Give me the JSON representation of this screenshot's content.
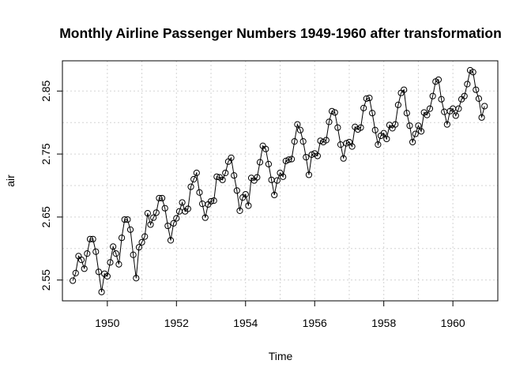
{
  "chart_data": {
    "type": "line",
    "title": "Monthly Airline Passenger Numbers 1949-1960 after transformation",
    "xlabel": "Time",
    "ylabel": "air",
    "xlim": [
      1948.7,
      1961.3
    ],
    "ylim": [
      2.517,
      2.898
    ],
    "x_ticks": [
      1950,
      1952,
      1954,
      1956,
      1958,
      1960
    ],
    "x_tick_labels": [
      "1950",
      "1952",
      "1954",
      "1956",
      "1958",
      "1960"
    ],
    "y_ticks": [
      2.55,
      2.65,
      2.75,
      2.85
    ],
    "y_tick_labels": [
      "2.55",
      "2.65",
      "2.75",
      "2.85"
    ],
    "grid_x": [
      1950,
      1951,
      1952,
      1953,
      1954,
      1955,
      1956,
      1957,
      1958,
      1959,
      1960
    ],
    "grid_y": [
      2.55,
      2.6,
      2.65,
      2.7,
      2.75,
      2.8,
      2.85
    ],
    "grid": "dotted",
    "markers": "open-circle",
    "line_color": "#000000",
    "grid_color": "#d3d3d3",
    "x_start": 1949,
    "x_step": 0.0833333,
    "series": [
      {
        "values": [
          2.549,
          2.561,
          2.588,
          2.582,
          2.568,
          2.592,
          2.615,
          2.615,
          2.595,
          2.563,
          2.531,
          2.56,
          2.556,
          2.578,
          2.603,
          2.592,
          2.575,
          2.617,
          2.646,
          2.646,
          2.63,
          2.59,
          2.553,
          2.602,
          2.61,
          2.619,
          2.656,
          2.638,
          2.649,
          2.657,
          2.68,
          2.68,
          2.664,
          2.636,
          2.613,
          2.64,
          2.648,
          2.659,
          2.673,
          2.659,
          2.663,
          2.698,
          2.71,
          2.72,
          2.689,
          2.671,
          2.649,
          2.67,
          2.675,
          2.676,
          2.714,
          2.713,
          2.709,
          2.72,
          2.738,
          2.744,
          2.716,
          2.692,
          2.66,
          2.681,
          2.686,
          2.668,
          2.712,
          2.708,
          2.713,
          2.737,
          2.763,
          2.758,
          2.734,
          2.709,
          2.685,
          2.708,
          2.72,
          2.714,
          2.739,
          2.741,
          2.742,
          2.77,
          2.797,
          2.788,
          2.77,
          2.745,
          2.717,
          2.749,
          2.751,
          2.747,
          2.771,
          2.769,
          2.772,
          2.801,
          2.818,
          2.816,
          2.792,
          2.765,
          2.743,
          2.767,
          2.769,
          2.762,
          2.793,
          2.789,
          2.792,
          2.823,
          2.838,
          2.839,
          2.815,
          2.788,
          2.765,
          2.779,
          2.783,
          2.774,
          2.796,
          2.791,
          2.797,
          2.828,
          2.847,
          2.852,
          2.815,
          2.795,
          2.769,
          2.782,
          2.795,
          2.786,
          2.816,
          2.812,
          2.822,
          2.842,
          2.865,
          2.868,
          2.837,
          2.817,
          2.797,
          2.818,
          2.822,
          2.811,
          2.822,
          2.837,
          2.842,
          2.861,
          2.883,
          2.88,
          2.852,
          2.838,
          2.808,
          2.826
        ]
      }
    ]
  }
}
